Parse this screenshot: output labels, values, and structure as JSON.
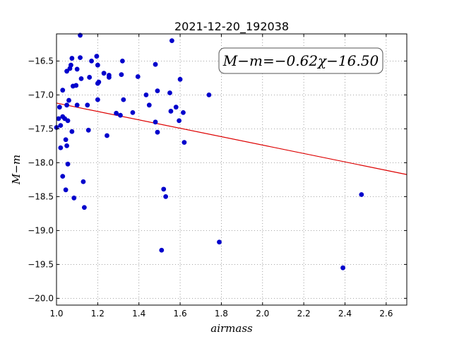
{
  "chart_data": {
    "type": "scatter",
    "title": "2021-12-20_192038",
    "xlabel": "airmass",
    "ylabel": "M−m",
    "xlim": [
      1.0,
      2.7
    ],
    "ylim": [
      -20.1,
      -16.1
    ],
    "x_ticks": [
      1.0,
      1.2,
      1.4,
      1.6,
      1.8,
      2.0,
      2.2,
      2.4,
      2.6
    ],
    "x_tick_labels": [
      "1.0",
      "1.2",
      "1.4",
      "1.6",
      "1.8",
      "2.0",
      "2.2",
      "2.4",
      "2.6"
    ],
    "y_ticks": [
      -16.5,
      -17.0,
      -17.5,
      -18.0,
      -18.5,
      -19.0,
      -19.5,
      -20.0
    ],
    "y_tick_labels": [
      "−16.5",
      "−17.0",
      "−17.5",
      "−18.0",
      "−18.5",
      "−19.0",
      "−19.5",
      "−20.0"
    ],
    "grid": true,
    "annotation": "M−m=−0.62χ−16.50",
    "annotation_position": "top-right",
    "point_color": "#0000cc",
    "fit_color": "#dd0000",
    "fit": {
      "slope": -0.62,
      "intercept": -16.5
    },
    "points": [
      [
        1.0,
        -17.48
      ],
      [
        1.01,
        -17.35
      ],
      [
        1.015,
        -17.18
      ],
      [
        1.02,
        -17.45
      ],
      [
        1.02,
        -17.78
      ],
      [
        1.03,
        -16.93
      ],
      [
        1.03,
        -17.32
      ],
      [
        1.03,
        -18.2
      ],
      [
        1.04,
        -17.35
      ],
      [
        1.045,
        -17.66
      ],
      [
        1.045,
        -18.4
      ],
      [
        1.05,
        -16.65
      ],
      [
        1.05,
        -17.15
      ],
      [
        1.05,
        -17.75
      ],
      [
        1.055,
        -17.38
      ],
      [
        1.055,
        -18.02
      ],
      [
        1.06,
        -17.08
      ],
      [
        1.065,
        -16.61
      ],
      [
        1.07,
        -16.56
      ],
      [
        1.075,
        -16.46
      ],
      [
        1.075,
        -17.54
      ],
      [
        1.08,
        -16.87
      ],
      [
        1.085,
        -18.52
      ],
      [
        1.095,
        -16.86
      ],
      [
        1.1,
        -16.62
      ],
      [
        1.1,
        -17.15
      ],
      [
        1.115,
        -16.12
      ],
      [
        1.115,
        -16.45
      ],
      [
        1.12,
        -16.76
      ],
      [
        1.13,
        -18.28
      ],
      [
        1.135,
        -18.66
      ],
      [
        1.15,
        -17.15
      ],
      [
        1.155,
        -17.52
      ],
      [
        1.16,
        -16.74
      ],
      [
        1.17,
        -16.5
      ],
      [
        1.195,
        -16.43
      ],
      [
        1.2,
        -16.56
      ],
      [
        1.2,
        -16.83
      ],
      [
        1.2,
        -17.07
      ],
      [
        1.205,
        -16.81
      ],
      [
        1.23,
        -16.68
      ],
      [
        1.245,
        -17.6
      ],
      [
        1.255,
        -16.71
      ],
      [
        1.255,
        -16.74
      ],
      [
        1.29,
        -17.27
      ],
      [
        1.31,
        -17.3
      ],
      [
        1.315,
        -16.7
      ],
      [
        1.32,
        -16.5
      ],
      [
        1.325,
        -17.07
      ],
      [
        1.37,
        -17.26
      ],
      [
        1.395,
        -16.73
      ],
      [
        1.435,
        -17.0
      ],
      [
        1.45,
        -17.15
      ],
      [
        1.48,
        -17.4
      ],
      [
        1.48,
        -16.55
      ],
      [
        1.49,
        -17.55
      ],
      [
        1.49,
        -16.94
      ],
      [
        1.51,
        -19.29
      ],
      [
        1.52,
        -18.39
      ],
      [
        1.53,
        -18.5
      ],
      [
        1.55,
        -16.97
      ],
      [
        1.555,
        -17.24
      ],
      [
        1.56,
        -16.2
      ],
      [
        1.58,
        -17.18
      ],
      [
        1.595,
        -17.38
      ],
      [
        1.6,
        -16.77
      ],
      [
        1.615,
        -17.26
      ],
      [
        1.62,
        -17.7
      ],
      [
        1.74,
        -17.0
      ],
      [
        1.79,
        -19.17
      ],
      [
        2.39,
        -19.55
      ],
      [
        2.48,
        -18.47
      ]
    ]
  }
}
